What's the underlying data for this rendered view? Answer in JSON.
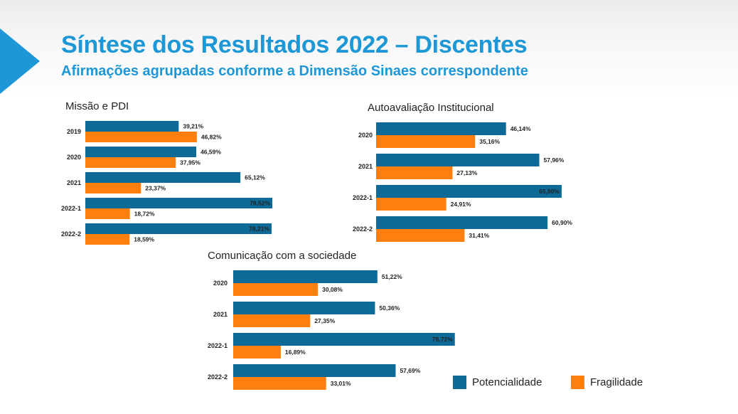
{
  "header": {
    "title": "Síntese dos Resultados 2022 – Discentes",
    "subtitle": "Afirmações agrupadas conforme a Dimensão Sinaes correspondente"
  },
  "colors": {
    "potencialidade": "#0e6a97",
    "fragilidade": "#ff7f0e",
    "title": "#1d97d5"
  },
  "legend": {
    "potencialidade": "Potencialidade",
    "fragilidade": "Fragilidade"
  },
  "chart_data": [
    {
      "type": "bar",
      "orientation": "horizontal",
      "title": "Missão e PDI",
      "categories": [
        "2019",
        "2020",
        "2021",
        "2022-1",
        "2022-2"
      ],
      "series": [
        {
          "name": "Potencialidade",
          "values": [
            39.21,
            46.59,
            65.12,
            78.52,
            78.21
          ]
        },
        {
          "name": "Fragilidade",
          "values": [
            46.82,
            37.95,
            23.37,
            18.72,
            18.59
          ]
        }
      ],
      "labels": [
        [
          "39,21%",
          "46,59%",
          "65,12%",
          "78,52%",
          "78,21%"
        ],
        [
          "46,82%",
          "37,95%",
          "23,37%",
          "18,72%",
          "18,59%"
        ]
      ]
    },
    {
      "type": "bar",
      "orientation": "horizontal",
      "title": "Autoavaliação Institucional",
      "categories": [
        "2020",
        "2021",
        "2022-1",
        "2022-2"
      ],
      "series": [
        {
          "name": "Potencialidade",
          "values": [
            46.14,
            57.96,
            65.9,
            60.9
          ]
        },
        {
          "name": "Fragilidade",
          "values": [
            35.16,
            27.13,
            24.91,
            31.41
          ]
        }
      ],
      "labels": [
        [
          "46,14%",
          "57,96%",
          "65,90%",
          "60,90%"
        ],
        [
          "35,16%",
          "27,13%",
          "24,91%",
          "31,41%"
        ]
      ]
    },
    {
      "type": "bar",
      "orientation": "horizontal",
      "title": "Comunicação com a sociedade",
      "categories": [
        "2020",
        "2021",
        "2022-1",
        "2022-2"
      ],
      "series": [
        {
          "name": "Potencialidade",
          "values": [
            51.22,
            50.36,
            78.72,
            57.69
          ]
        },
        {
          "name": "Fragilidade",
          "values": [
            30.08,
            27.35,
            16.89,
            33.01
          ]
        }
      ],
      "labels": [
        [
          "51,22%",
          "50,36%",
          "78,72%",
          "57,69%"
        ],
        [
          "30,08%",
          "27,35%",
          "16,89%",
          "33,01%"
        ]
      ]
    }
  ]
}
